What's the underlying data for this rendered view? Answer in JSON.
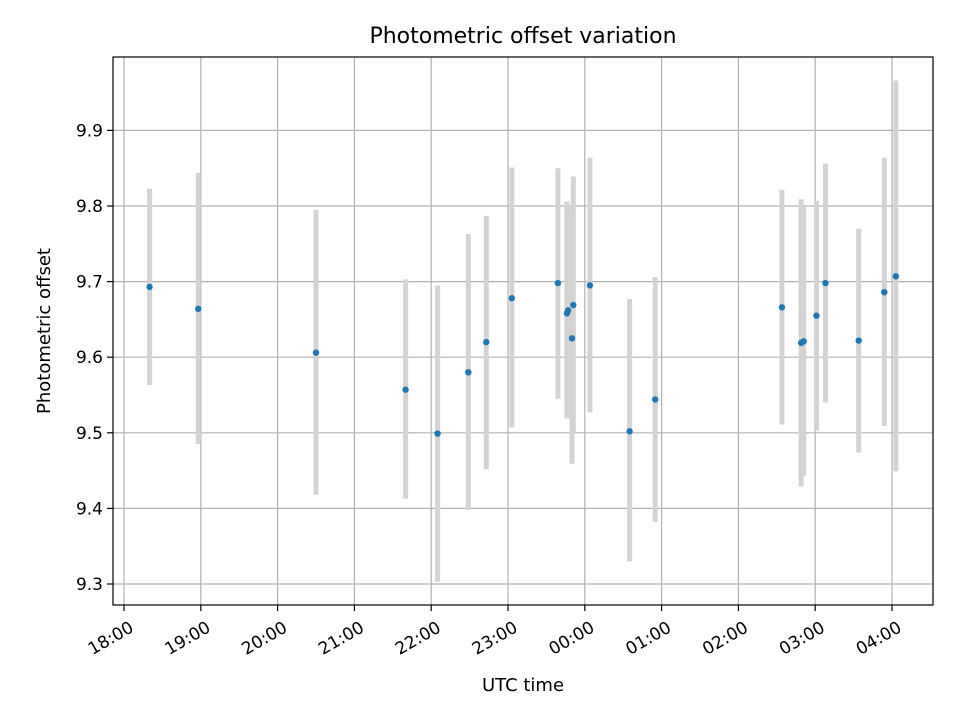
{
  "chart_data": {
    "type": "scatter",
    "title": "Photometric offset variation",
    "xlabel": "UTC time",
    "ylabel": "Photometric offset",
    "x_ticks": [
      "18:00",
      "19:00",
      "20:00",
      "21:00",
      "22:00",
      "23:00",
      "00:00",
      "01:00",
      "02:00",
      "03:00",
      "04:00"
    ],
    "y_ticks": [
      9.3,
      9.4,
      9.5,
      9.6,
      9.7,
      9.8,
      9.9
    ],
    "ylim": [
      9.27,
      10.0
    ],
    "grid": true,
    "colors": {
      "point": "#1f77b4",
      "errorbar": "#d3d3d3",
      "grid": "#b0b0b0"
    },
    "points": [
      {
        "t": "18:20",
        "y": 9.693,
        "lo": 9.563,
        "hi": 9.823
      },
      {
        "t": "18:58",
        "y": 9.664,
        "lo": 9.485,
        "hi": 9.844
      },
      {
        "t": "20:30",
        "y": 9.606,
        "lo": 9.418,
        "hi": 9.795
      },
      {
        "t": "21:40",
        "y": 9.557,
        "lo": 9.413,
        "hi": 9.703
      },
      {
        "t": "22:05",
        "y": 9.499,
        "lo": 9.303,
        "hi": 9.695
      },
      {
        "t": "22:29",
        "y": 9.58,
        "lo": 9.398,
        "hi": 9.763
      },
      {
        "t": "22:43",
        "y": 9.62,
        "lo": 9.452,
        "hi": 9.787
      },
      {
        "t": "23:03",
        "y": 9.678,
        "lo": 9.507,
        "hi": 9.851
      },
      {
        "t": "23:39",
        "y": 9.698,
        "lo": 9.545,
        "hi": 9.85
      },
      {
        "t": "23:46",
        "y": 9.658,
        "lo": 9.519,
        "hi": 9.806
      },
      {
        "t": "23:47",
        "y": 9.662,
        "lo": 9.52,
        "hi": 9.8
      },
      {
        "t": "23:50",
        "y": 9.625,
        "lo": 9.459,
        "hi": 9.793
      },
      {
        "t": "23:51",
        "y": 9.669,
        "lo": 9.5,
        "hi": 9.839
      },
      {
        "t": "00:04",
        "y": 9.695,
        "lo": 9.527,
        "hi": 9.864
      },
      {
        "t": "00:35",
        "y": 9.502,
        "lo": 9.33,
        "hi": 9.677
      },
      {
        "t": "00:55",
        "y": 9.544,
        "lo": 9.382,
        "hi": 9.706
      },
      {
        "t": "02:34",
        "y": 9.666,
        "lo": 9.511,
        "hi": 9.821
      },
      {
        "t": "02:49",
        "y": 9.619,
        "lo": 9.429,
        "hi": 9.809
      },
      {
        "t": "02:51",
        "y": 9.621,
        "lo": 9.443,
        "hi": 9.8
      },
      {
        "t": "03:01",
        "y": 9.655,
        "lo": 9.503,
        "hi": 9.807
      },
      {
        "t": "03:08",
        "y": 9.698,
        "lo": 9.54,
        "hi": 9.856
      },
      {
        "t": "03:34",
        "y": 9.622,
        "lo": 9.474,
        "hi": 9.77
      },
      {
        "t": "03:54",
        "y": 9.686,
        "lo": 9.509,
        "hi": 9.864
      },
      {
        "t": "04:03",
        "y": 9.707,
        "lo": 9.449,
        "hi": 9.966
      }
    ]
  }
}
